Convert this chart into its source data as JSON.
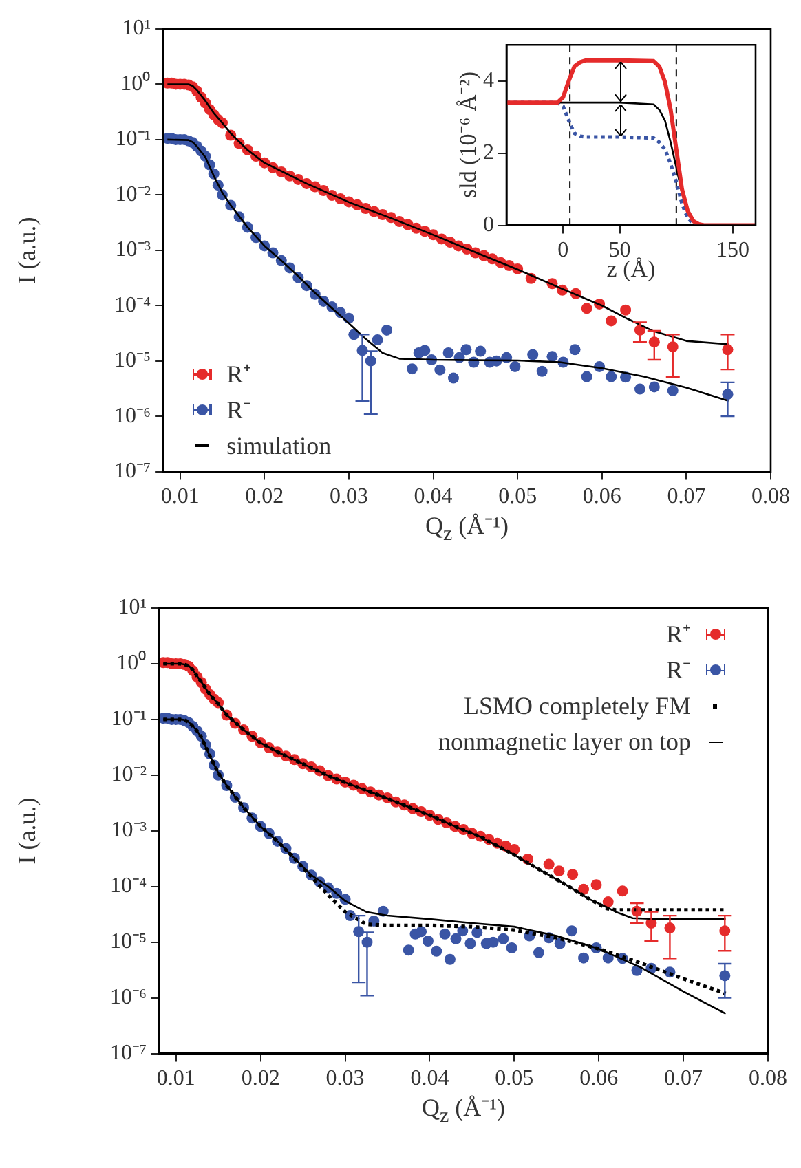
{
  "chart_data": [
    {
      "type": "scatter",
      "xlabel": "Q$_{z}$ (Å⁻¹)",
      "ylabel": "I (a.u.)",
      "log": "y",
      "grid": false,
      "legend": "bottom left",
      "xlim": [
        0.008,
        0.08
      ],
      "xticks": [
        0.01,
        0.02,
        0.03,
        0.04,
        0.05,
        0.06,
        0.07,
        0.08
      ],
      "ylim": [
        1e-07,
        10
      ],
      "yticks": [
        {
          "value": 1e-07,
          "label": "10⁻⁷"
        },
        {
          "value": 1e-06,
          "label": "10⁻⁶"
        },
        {
          "value": 1e-05,
          "label": "10⁻⁵"
        },
        {
          "value": 0.0001,
          "label": "10⁻⁴"
        },
        {
          "value": 0.001,
          "label": "10⁻³"
        },
        {
          "value": 0.01,
          "label": "10⁻²"
        },
        {
          "value": 0.1,
          "label": "10⁻¹"
        },
        {
          "value": 1,
          "label": "10⁰"
        },
        {
          "value": 10,
          "label": "10¹"
        }
      ],
      "series": [
        {
          "name": "R⁺",
          "type": "scatter",
          "marker": "circle",
          "color": "#e52b2b",
          "x": [
            0.0085,
            0.009,
            0.0095,
            0.01,
            0.0105,
            0.011,
            0.0115,
            0.012,
            0.0125,
            0.013,
            0.0135,
            0.014,
            0.0145,
            0.015,
            0.016,
            0.017,
            0.018,
            0.019,
            0.02,
            0.021,
            0.022,
            0.023,
            0.024,
            0.025,
            0.026,
            0.027,
            0.028,
            0.029,
            0.03,
            0.031,
            0.032,
            0.033,
            0.034,
            0.035,
            0.036,
            0.037,
            0.038,
            0.039,
            0.04,
            0.041,
            0.042,
            0.043,
            0.044,
            0.045,
            0.046,
            0.047,
            0.048,
            0.049,
            0.05,
            0.0516,
            0.0541,
            0.0553,
            0.0569,
            0.0582,
            0.0597,
            0.0611,
            0.0628,
            0.0645,
            0.0662,
            0.0684,
            0.0749
          ],
          "values": [
            1.05,
            1.05,
            1.0,
            1.0,
            1.0,
            0.97,
            0.9,
            0.75,
            0.58,
            0.46,
            0.35,
            0.28,
            0.23,
            0.2,
            0.12,
            0.085,
            0.065,
            0.05,
            0.038,
            0.031,
            0.026,
            0.022,
            0.019,
            0.016,
            0.014,
            0.012,
            0.0098,
            0.0085,
            0.0075,
            0.0066,
            0.0057,
            0.005,
            0.0044,
            0.0039,
            0.0033,
            0.0029,
            0.0025,
            0.0022,
            0.0019,
            0.0016,
            0.0014,
            0.0012,
            0.00105,
            0.0009,
            0.0008,
            0.0007,
            0.0006,
            0.00053,
            0.00046,
            0.00031,
            0.00025,
            0.00019,
            0.000165,
            8.9e-05,
            0.000107,
            5.3e-05,
            8.3e-05,
            3.6e-05,
            2.2e-05,
            1.8e-05,
            1.6e-05
          ],
          "errors": [
            null,
            null,
            null,
            null,
            null,
            null,
            null,
            null,
            null,
            null,
            null,
            null,
            null,
            null,
            null,
            null,
            null,
            null,
            null,
            null,
            null,
            null,
            null,
            null,
            null,
            null,
            null,
            null,
            null,
            null,
            null,
            null,
            null,
            null,
            null,
            null,
            null,
            null,
            null,
            null,
            null,
            null,
            null,
            null,
            null,
            null,
            null,
            null,
            null,
            null,
            null,
            null,
            null,
            null,
            null,
            null,
            null,
            [
              2.2e-05,
              5e-05
            ],
            [
              1.05e-05,
              3.5e-05
            ],
            [
              5.1e-06,
              3e-05
            ],
            [
              7e-06,
              3e-05
            ]
          ]
        },
        {
          "name": "R⁻",
          "type": "scatter",
          "marker": "circle",
          "color": "#3a55a5",
          "x": [
            0.0085,
            0.009,
            0.0095,
            0.01,
            0.0105,
            0.011,
            0.0115,
            0.012,
            0.0125,
            0.013,
            0.0135,
            0.014,
            0.0145,
            0.015,
            0.016,
            0.017,
            0.018,
            0.019,
            0.02,
            0.021,
            0.022,
            0.023,
            0.024,
            0.025,
            0.026,
            0.027,
            0.028,
            0.029,
            0.03,
            0.0306,
            0.0316,
            0.0326,
            0.0334,
            0.0345,
            0.0375,
            0.0383,
            0.039,
            0.0398,
            0.0408,
            0.0418,
            0.0424,
            0.0431,
            0.0439,
            0.0448,
            0.0456,
            0.0467,
            0.0475,
            0.0487,
            0.0497,
            0.0518,
            0.0529,
            0.0541,
            0.0554,
            0.0568,
            0.0582,
            0.0597,
            0.0611,
            0.0628,
            0.0645,
            0.0662,
            0.0684,
            0.0749
          ],
          "values": [
            0.105,
            0.105,
            0.1,
            0.1,
            0.1,
            0.095,
            0.088,
            0.075,
            0.062,
            0.05,
            0.035,
            0.024,
            0.015,
            0.01,
            0.0065,
            0.004,
            0.0026,
            0.0017,
            0.0012,
            0.0009,
            0.00065,
            0.00048,
            0.00032,
            0.00023,
            0.00016,
            0.00012,
            9.5e-05,
            7.5e-05,
            5.9e-05,
            3e-05,
            1.55e-05,
            1e-05,
            2.4e-05,
            3.6e-05,
            7.2e-06,
            1.4e-05,
            1.55e-05,
            1.05e-05,
            6.9e-06,
            1.4e-05,
            4.9e-06,
            1.15e-05,
            1.6e-05,
            9.5e-06,
            1.5e-05,
            9.5e-06,
            1e-05,
            1.15e-05,
            7.9e-06,
            1.3e-05,
            6.5e-06,
            1.2e-05,
            9.5e-06,
            1.6e-05,
            5.2e-06,
            7.9e-06,
            5.2e-06,
            5.1e-06,
            3.1e-06,
            3.4e-06,
            2.9e-06,
            2.5e-06
          ],
          "errors": [
            null,
            null,
            null,
            null,
            null,
            null,
            null,
            null,
            null,
            null,
            null,
            null,
            null,
            null,
            null,
            null,
            null,
            null,
            null,
            null,
            null,
            null,
            null,
            null,
            null,
            null,
            null,
            null,
            null,
            null,
            [
              1.9e-06,
              3e-05
            ],
            [
              1.1e-06,
              1.5e-05
            ],
            null,
            null,
            null,
            null,
            null,
            null,
            null,
            null,
            null,
            null,
            null,
            null,
            null,
            null,
            null,
            null,
            null,
            null,
            null,
            null,
            null,
            null,
            null,
            null,
            null,
            null,
            null,
            null,
            null,
            [
              1e-06,
              4.1e-06
            ]
          ]
        },
        {
          "name": "simulation",
          "type": "line",
          "marker": "none",
          "color": "#000000",
          "line_style": "solid",
          "x": [
            0.0085,
            0.011,
            0.0115,
            0.012,
            0.013,
            0.014,
            0.015,
            0.016,
            0.018,
            0.02,
            0.025,
            0.03,
            0.035,
            0.04,
            0.045,
            0.05,
            0.055,
            0.06,
            0.063,
            0.066,
            0.07,
            0.075
          ],
          "values": [
            1.0,
            1.0,
            0.93,
            0.78,
            0.5,
            0.3,
            0.2,
            0.13,
            0.065,
            0.038,
            0.016,
            0.0074,
            0.0038,
            0.0019,
            0.00092,
            0.00045,
            0.00021,
            0.0001,
            5.8e-05,
            3.5e-05,
            2.3e-05,
            2e-05
          ]
        },
        {
          "type": "line",
          "marker": "none",
          "color": "#000000",
          "line_style": "solid",
          "x": [
            0.0085,
            0.011,
            0.0115,
            0.012,
            0.013,
            0.014,
            0.015,
            0.016,
            0.018,
            0.02,
            0.022,
            0.024,
            0.026,
            0.028,
            0.03,
            0.032,
            0.034,
            0.036,
            0.04,
            0.045,
            0.05,
            0.055,
            0.06,
            0.065,
            0.07,
            0.075
          ],
          "values": [
            0.1,
            0.098,
            0.09,
            0.075,
            0.048,
            0.022,
            0.011,
            0.0065,
            0.0026,
            0.0012,
            0.00065,
            0.00034,
            0.00017,
            9e-05,
            4.8e-05,
            2.5e-05,
            1.4e-05,
            1.1e-05,
            1.05e-05,
            1.03e-05,
            1.02e-05,
            9.5e-06,
            7.4e-06,
            5.2e-06,
            3.3e-06,
            1.9e-06
          ]
        }
      ]
    },
    {
      "type": "line",
      "xlabel": "z (Å)",
      "ylabel": "sld (10⁻⁶ Å⁻²)",
      "grid": false,
      "legend": false,
      "xlim": [
        -50,
        170
      ],
      "xticks": [
        0,
        50,
        150
      ],
      "ylim": [
        0,
        5
      ],
      "yticks": [
        0,
        2,
        4
      ],
      "x": [
        -50,
        -5,
        0,
        5,
        10,
        15,
        20,
        50,
        80,
        85,
        90,
        95,
        100,
        105,
        110,
        115,
        120,
        125,
        170
      ],
      "ref_lines": [
        {
          "axis": "x",
          "value": 6,
          "color": "#000000",
          "line_style": "dashed"
        },
        {
          "axis": "x",
          "value": 100,
          "color": "#000000",
          "line_style": "dashed"
        }
      ],
      "series": [
        {
          "color": "#e52b2b",
          "line_style": "solid",
          "values": [
            3.4,
            3.4,
            3.55,
            4.0,
            4.4,
            4.52,
            4.57,
            4.57,
            4.55,
            4.4,
            3.97,
            3.2,
            2.1,
            1.0,
            0.4,
            0.12,
            0.03,
            0,
            0
          ]
        },
        {
          "color": "#000000",
          "line_style": "solid",
          "values": [
            3.4,
            3.4,
            3.4,
            3.4,
            3.4,
            3.4,
            3.4,
            3.4,
            3.35,
            3.2,
            2.9,
            2.3,
            1.6,
            0.9,
            0.4,
            0.12,
            0.02,
            0,
            0
          ]
        },
        {
          "color": "#3a55a5",
          "line_style": "dotted",
          "values": [
            3.4,
            3.4,
            3.3,
            2.9,
            2.55,
            2.47,
            2.45,
            2.45,
            2.42,
            2.3,
            2.1,
            1.7,
            1.2,
            0.6,
            0.2,
            0.05,
            0.01,
            0,
            0
          ]
        }
      ]
    },
    {
      "type": "scatter",
      "xlabel": "Q$_{z}$ (Å⁻¹)",
      "ylabel": "I (a.u.)",
      "log": "y",
      "grid": false,
      "legend": "top right",
      "xlim": [
        0.008,
        0.08
      ],
      "xticks": [
        0.01,
        0.02,
        0.03,
        0.04,
        0.05,
        0.06,
        0.07,
        0.08
      ],
      "ylim": [
        1e-07,
        10
      ],
      "yticks": [
        {
          "value": 1e-07,
          "label": "10⁻⁷"
        },
        {
          "value": 1e-06,
          "label": "10⁻⁶"
        },
        {
          "value": 1e-05,
          "label": "10⁻⁵"
        },
        {
          "value": 0.0001,
          "label": "10⁻⁴"
        },
        {
          "value": 0.001,
          "label": "10⁻³"
        },
        {
          "value": 0.01,
          "label": "10⁻²"
        },
        {
          "value": 0.1,
          "label": "10⁻¹"
        },
        {
          "value": 1,
          "label": "10⁰"
        },
        {
          "value": 10,
          "label": "10¹"
        }
      ],
      "series": [
        {
          "name": "R⁺",
          "type": "scatter",
          "marker": "circle",
          "color": "#e52b2b",
          "x": [
            0.0085,
            0.009,
            0.0095,
            0.01,
            0.0105,
            0.011,
            0.0115,
            0.012,
            0.0125,
            0.013,
            0.0135,
            0.014,
            0.0145,
            0.015,
            0.016,
            0.017,
            0.018,
            0.019,
            0.02,
            0.021,
            0.022,
            0.023,
            0.024,
            0.025,
            0.026,
            0.027,
            0.028,
            0.029,
            0.03,
            0.031,
            0.032,
            0.033,
            0.034,
            0.035,
            0.036,
            0.037,
            0.038,
            0.039,
            0.04,
            0.041,
            0.042,
            0.043,
            0.044,
            0.045,
            0.046,
            0.047,
            0.048,
            0.049,
            0.05,
            0.0516,
            0.0541,
            0.0553,
            0.0569,
            0.0582,
            0.0597,
            0.0611,
            0.0628,
            0.0645,
            0.0662,
            0.0684,
            0.0749
          ],
          "values": [
            1.05,
            1.05,
            1.0,
            1.0,
            1.0,
            0.97,
            0.9,
            0.75,
            0.58,
            0.46,
            0.35,
            0.28,
            0.23,
            0.2,
            0.12,
            0.085,
            0.065,
            0.05,
            0.038,
            0.031,
            0.026,
            0.022,
            0.019,
            0.016,
            0.014,
            0.012,
            0.0098,
            0.0085,
            0.0075,
            0.0066,
            0.0057,
            0.005,
            0.0044,
            0.0039,
            0.0033,
            0.0029,
            0.0025,
            0.0022,
            0.0019,
            0.0016,
            0.0014,
            0.0012,
            0.00105,
            0.0009,
            0.0008,
            0.0007,
            0.0006,
            0.00053,
            0.00046,
            0.00031,
            0.00025,
            0.00019,
            0.000165,
            8.9e-05,
            0.000107,
            5.3e-05,
            8.3e-05,
            3.6e-05,
            2.2e-05,
            1.8e-05,
            1.6e-05
          ],
          "errors": [
            null,
            null,
            null,
            null,
            null,
            null,
            null,
            null,
            null,
            null,
            null,
            null,
            null,
            null,
            null,
            null,
            null,
            null,
            null,
            null,
            null,
            null,
            null,
            null,
            null,
            null,
            null,
            null,
            null,
            null,
            null,
            null,
            null,
            null,
            null,
            null,
            null,
            null,
            null,
            null,
            null,
            null,
            null,
            null,
            null,
            null,
            null,
            null,
            null,
            null,
            null,
            null,
            null,
            null,
            null,
            null,
            null,
            [
              2.2e-05,
              5e-05
            ],
            [
              1.05e-05,
              3.5e-05
            ],
            [
              5.1e-06,
              3e-05
            ],
            [
              7e-06,
              3e-05
            ]
          ]
        },
        {
          "name": "R⁻",
          "type": "scatter",
          "marker": "circle",
          "color": "#3a55a5",
          "x": [
            0.0085,
            0.009,
            0.0095,
            0.01,
            0.0105,
            0.011,
            0.0115,
            0.012,
            0.0125,
            0.013,
            0.0135,
            0.014,
            0.0145,
            0.015,
            0.016,
            0.017,
            0.018,
            0.019,
            0.02,
            0.021,
            0.022,
            0.023,
            0.024,
            0.025,
            0.026,
            0.027,
            0.028,
            0.029,
            0.03,
            0.0306,
            0.0316,
            0.0326,
            0.0334,
            0.0345,
            0.0375,
            0.0383,
            0.039,
            0.0398,
            0.0408,
            0.0418,
            0.0424,
            0.0431,
            0.0439,
            0.0448,
            0.0456,
            0.0467,
            0.0475,
            0.0487,
            0.0497,
            0.0518,
            0.0529,
            0.0541,
            0.0554,
            0.0568,
            0.0582,
            0.0597,
            0.0611,
            0.0628,
            0.0645,
            0.0662,
            0.0684,
            0.0749
          ],
          "values": [
            0.105,
            0.105,
            0.1,
            0.1,
            0.1,
            0.095,
            0.088,
            0.075,
            0.062,
            0.05,
            0.035,
            0.024,
            0.015,
            0.01,
            0.0065,
            0.004,
            0.0026,
            0.0017,
            0.0012,
            0.0009,
            0.00065,
            0.00048,
            0.00032,
            0.00023,
            0.00016,
            0.00012,
            9.5e-05,
            7.5e-05,
            5.9e-05,
            3e-05,
            1.55e-05,
            1e-05,
            2.4e-05,
            3.6e-05,
            7.2e-06,
            1.4e-05,
            1.55e-05,
            1.05e-05,
            6.9e-06,
            1.4e-05,
            4.9e-06,
            1.15e-05,
            1.6e-05,
            9.5e-06,
            1.5e-05,
            9.5e-06,
            1e-05,
            1.15e-05,
            7.9e-06,
            1.3e-05,
            6.5e-06,
            1.2e-05,
            9.5e-06,
            1.6e-05,
            5.2e-06,
            7.9e-06,
            5.2e-06,
            5.1e-06,
            3.1e-06,
            3.4e-06,
            2.9e-06,
            2.5e-06
          ],
          "errors": [
            null,
            null,
            null,
            null,
            null,
            null,
            null,
            null,
            null,
            null,
            null,
            null,
            null,
            null,
            null,
            null,
            null,
            null,
            null,
            null,
            null,
            null,
            null,
            null,
            null,
            null,
            null,
            null,
            null,
            null,
            [
              1.9e-06,
              3e-05
            ],
            [
              1.1e-06,
              1.5e-05
            ],
            null,
            null,
            null,
            null,
            null,
            null,
            null,
            null,
            null,
            null,
            null,
            null,
            null,
            null,
            null,
            null,
            null,
            null,
            null,
            null,
            null,
            null,
            null,
            null,
            null,
            null,
            null,
            null,
            null,
            [
              1e-06,
              4.1e-06
            ]
          ]
        },
        {
          "name": "LSMO completely FM",
          "type": "line",
          "marker": "none",
          "color": "#000000",
          "line_style": "dotted",
          "x": [
            0.0085,
            0.0095,
            0.0105,
            0.011,
            0.0115,
            0.012,
            0.0125,
            0.013,
            0.014,
            0.015,
            0.016,
            0.018,
            0.02,
            0.022,
            0.025,
            0.028,
            0.03,
            0.033,
            0.036,
            0.04,
            0.043,
            0.046,
            0.05,
            0.053,
            0.056,
            0.059,
            0.061,
            0.062,
            0.064,
            0.067,
            0.07,
            0.073,
            0.075
          ],
          "values": [
            1.0,
            1.0,
            1.0,
            0.97,
            0.92,
            0.78,
            0.6,
            0.47,
            0.28,
            0.19,
            0.12,
            0.065,
            0.038,
            0.026,
            0.016,
            0.0098,
            0.0074,
            0.005,
            0.0033,
            0.0019,
            0.0012,
            0.00078,
            0.00037,
            0.0002,
            0.00011,
            5.8e-05,
            4e-05,
            3.8e-05,
            3.8e-05,
            3.8e-05,
            3.8e-05,
            3.8e-05,
            3.8e-05
          ]
        },
        {
          "type": "line",
          "marker": "none",
          "color": "#000000",
          "line_style": "dotted",
          "x": [
            0.0085,
            0.0095,
            0.0105,
            0.011,
            0.0115,
            0.012,
            0.0125,
            0.013,
            0.014,
            0.015,
            0.016,
            0.018,
            0.02,
            0.022,
            0.024,
            0.026,
            0.028,
            0.03,
            0.0325,
            0.035,
            0.04,
            0.045,
            0.05,
            0.055,
            0.06,
            0.065,
            0.07,
            0.075
          ],
          "values": [
            0.1,
            0.1,
            0.1,
            0.098,
            0.09,
            0.075,
            0.062,
            0.048,
            0.022,
            0.011,
            0.0065,
            0.0026,
            0.0012,
            0.00065,
            0.00032,
            0.00015,
            7e-05,
            3.5e-05,
            2.1e-05,
            2e-05,
            2e-05,
            1.9e-05,
            1.65e-05,
            1.2e-05,
            7.6e-06,
            4.2e-06,
            2.2e-06,
            1.2e-06
          ]
        },
        {
          "name": "nonmagnetic layer on top",
          "type": "line",
          "marker": "none",
          "color": "#000000",
          "line_style": "solid",
          "x": [
            0.0085,
            0.0095,
            0.0105,
            0.011,
            0.0115,
            0.012,
            0.0125,
            0.013,
            0.014,
            0.015,
            0.016,
            0.018,
            0.02,
            0.022,
            0.025,
            0.028,
            0.03,
            0.033,
            0.036,
            0.04,
            0.043,
            0.046,
            0.05,
            0.053,
            0.056,
            0.059,
            0.061,
            0.062,
            0.064,
            0.067,
            0.07,
            0.073,
            0.075
          ],
          "values": [
            1.0,
            1.0,
            1.0,
            0.97,
            0.92,
            0.78,
            0.6,
            0.47,
            0.28,
            0.19,
            0.12,
            0.065,
            0.038,
            0.026,
            0.016,
            0.0098,
            0.0074,
            0.005,
            0.0033,
            0.0019,
            0.0012,
            0.00078,
            0.00037,
            0.0002,
            0.00011,
            5.8e-05,
            4.2e-05,
            3.5e-05,
            2.7e-05,
            2.6e-05,
            2.6e-05,
            2.6e-05,
            2.6e-05
          ]
        },
        {
          "type": "line",
          "marker": "none",
          "color": "#000000",
          "line_style": "solid",
          "x": [
            0.0085,
            0.0095,
            0.0105,
            0.011,
            0.0115,
            0.012,
            0.0125,
            0.013,
            0.014,
            0.015,
            0.016,
            0.018,
            0.02,
            0.022,
            0.024,
            0.026,
            0.028,
            0.03,
            0.0325,
            0.035,
            0.04,
            0.045,
            0.05,
            0.055,
            0.06,
            0.065,
            0.07,
            0.075
          ],
          "values": [
            0.1,
            0.1,
            0.1,
            0.098,
            0.09,
            0.075,
            0.062,
            0.048,
            0.022,
            0.011,
            0.0065,
            0.0026,
            0.0012,
            0.00065,
            0.00032,
            0.00016,
            0.0001,
            5.5e-05,
            3.5e-05,
            3e-05,
            2.6e-05,
            2.2e-05,
            1.9e-05,
            1.3e-05,
            7.6e-06,
            3.5e-06,
            1.3e-06,
            5.2e-07
          ]
        }
      ]
    }
  ]
}
